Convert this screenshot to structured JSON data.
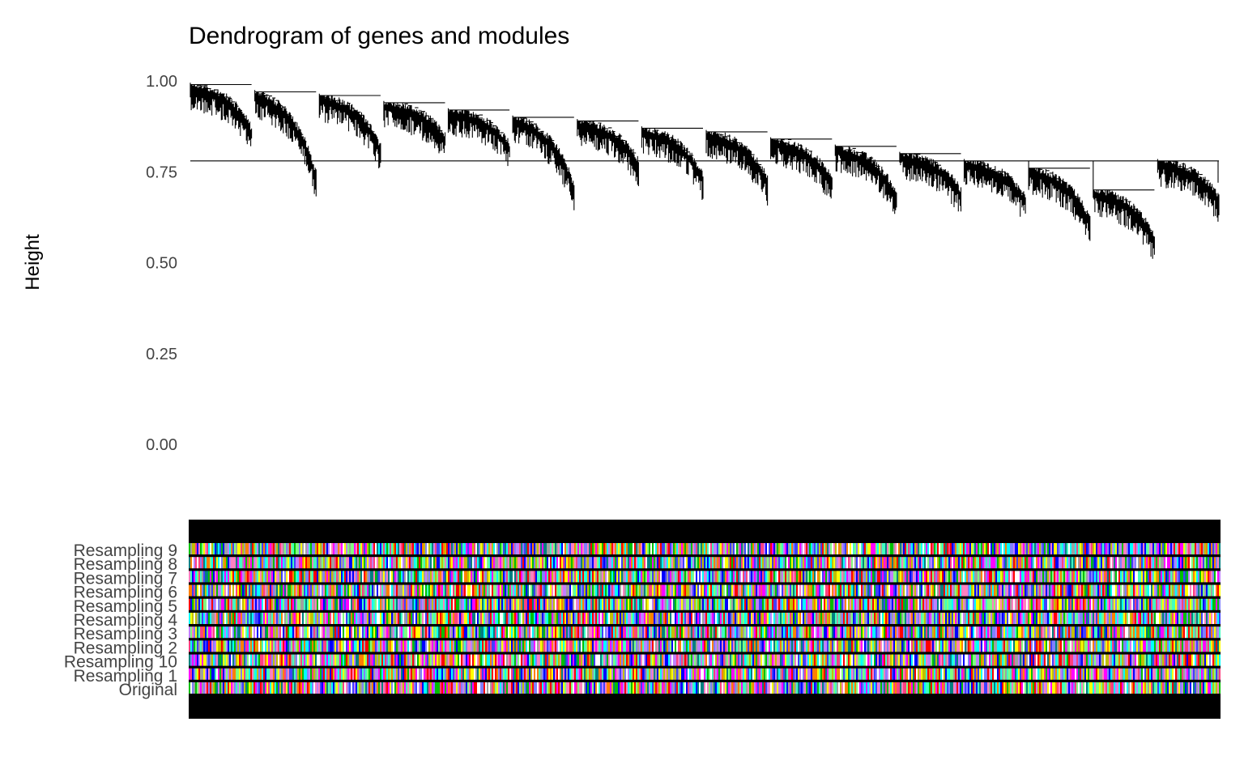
{
  "chart_data": {
    "type": "dendrogram",
    "title": "Dendrogram of genes and modules",
    "ylabel": "Height",
    "ylim": [
      0,
      1
    ],
    "yticks": [
      {
        "value": 0.0,
        "label": "0.00"
      },
      {
        "value": 0.25,
        "label": "0.25"
      },
      {
        "value": 0.5,
        "label": "0.50"
      },
      {
        "value": 0.75,
        "label": "0.75"
      },
      {
        "value": 1.0,
        "label": "1.00"
      }
    ],
    "dendrogram": {
      "line_color": "#000000",
      "root_height": 0.78,
      "clusters": [
        {
          "merge": 0.99,
          "min_leaf": 0.86
        },
        {
          "merge": 0.97,
          "min_leaf": 0.73
        },
        {
          "merge": 0.96,
          "min_leaf": 0.81
        },
        {
          "merge": 0.94,
          "min_leaf": 0.84
        },
        {
          "merge": 0.92,
          "min_leaf": 0.82
        },
        {
          "merge": 0.9,
          "min_leaf": 0.7
        },
        {
          "merge": 0.89,
          "min_leaf": 0.77
        },
        {
          "merge": 0.87,
          "min_leaf": 0.73
        },
        {
          "merge": 0.86,
          "min_leaf": 0.72
        },
        {
          "merge": 0.84,
          "min_leaf": 0.72
        },
        {
          "merge": 0.82,
          "min_leaf": 0.68
        },
        {
          "merge": 0.8,
          "min_leaf": 0.69
        },
        {
          "merge": 0.78,
          "min_leaf": 0.67
        },
        {
          "merge": 0.76,
          "min_leaf": 0.61
        },
        {
          "merge": 0.7,
          "min_leaf": 0.56
        },
        {
          "merge": 0.78,
          "min_leaf": 0.67
        }
      ]
    },
    "color_rows": [
      "Resampling 9",
      "Resampling 8",
      "Resampling 7",
      "Resampling 6",
      "Resampling 5",
      "Resampling 4",
      "Resampling 3",
      "Resampling 2",
      "Resampling 10",
      "Resampling 1",
      "Original"
    ],
    "module_palette": [
      "#ff0000",
      "#00c000",
      "#0000ff",
      "#ff00ff",
      "#00ffff",
      "#ffff00",
      "#c080ff",
      "#ff8000",
      "#80ff80",
      "#4040ff",
      "#ff80c0",
      "#008080",
      "#a0a0a0",
      "#ffffff",
      "#8080ff",
      "#ff4080",
      "#40ffc0",
      "#c0c000"
    ],
    "band_color": "#000000"
  }
}
